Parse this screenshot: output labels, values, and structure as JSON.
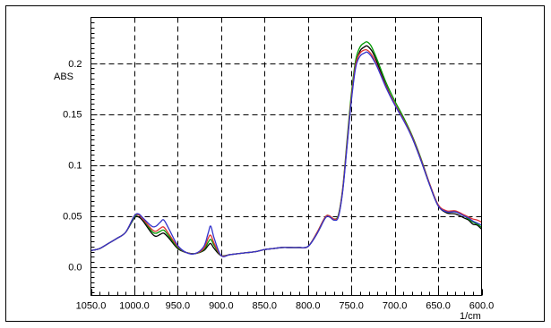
{
  "chart_data": {
    "type": "line",
    "title": "",
    "ylabel": "ABS",
    "xlabel": "1/cm",
    "x_reversed": true,
    "xlim": [
      1050,
      600
    ],
    "ylim": [
      -0.028,
      0.245
    ],
    "grid": true,
    "x_ticks": [
      1050,
      1000,
      950,
      900,
      850,
      800,
      750,
      700,
      650,
      600
    ],
    "x_tick_labels": [
      "1050.0",
      "1000.0",
      "950.0",
      "900.0",
      "850.0",
      "800.0",
      "750.0",
      "700.0",
      "650.0",
      "600.0"
    ],
    "y_ticks": [
      0.0,
      0.05,
      0.1,
      0.15,
      0.2
    ],
    "y_tick_labels": [
      "0.0",
      "0.05",
      "0.1",
      "0.15",
      "0.2"
    ],
    "x": [
      1050,
      1040,
      1030,
      1020,
      1010,
      1000,
      995,
      990,
      980,
      975,
      970,
      966,
      960,
      950,
      940,
      930,
      920,
      915,
      912,
      908,
      900,
      890,
      880,
      870,
      860,
      850,
      840,
      830,
      820,
      810,
      800,
      790,
      780,
      775,
      770,
      765,
      760,
      755,
      750,
      745,
      740,
      735,
      732,
      728,
      725,
      720,
      710,
      700,
      690,
      680,
      670,
      660,
      650,
      640,
      630,
      620,
      615,
      610,
      605,
      600
    ],
    "series": [
      {
        "color": "#000000",
        "values": [
          0.016,
          0.018,
          0.023,
          0.028,
          0.034,
          0.048,
          0.049,
          0.045,
          0.033,
          0.03,
          0.032,
          0.033,
          0.028,
          0.018,
          0.014,
          0.013,
          0.016,
          0.021,
          0.023,
          0.018,
          0.011,
          0.012,
          0.013,
          0.014,
          0.015,
          0.017,
          0.018,
          0.019,
          0.019,
          0.019,
          0.02,
          0.032,
          0.048,
          0.049,
          0.046,
          0.05,
          0.075,
          0.12,
          0.165,
          0.198,
          0.212,
          0.216,
          0.217,
          0.214,
          0.21,
          0.2,
          0.178,
          0.16,
          0.145,
          0.127,
          0.105,
          0.081,
          0.06,
          0.053,
          0.052,
          0.048,
          0.046,
          0.042,
          0.041,
          0.037
        ]
      },
      {
        "color": "#009900",
        "values": [
          0.016,
          0.018,
          0.023,
          0.028,
          0.034,
          0.049,
          0.051,
          0.047,
          0.035,
          0.033,
          0.035,
          0.036,
          0.03,
          0.019,
          0.014,
          0.013,
          0.017,
          0.024,
          0.027,
          0.021,
          0.011,
          0.012,
          0.013,
          0.014,
          0.015,
          0.017,
          0.018,
          0.019,
          0.019,
          0.019,
          0.02,
          0.033,
          0.049,
          0.05,
          0.047,
          0.051,
          0.077,
          0.124,
          0.17,
          0.203,
          0.216,
          0.22,
          0.221,
          0.218,
          0.213,
          0.203,
          0.181,
          0.163,
          0.147,
          0.129,
          0.107,
          0.082,
          0.061,
          0.054,
          0.054,
          0.05,
          0.047,
          0.044,
          0.042,
          0.039
        ]
      },
      {
        "color": "#e03030",
        "values": [
          0.016,
          0.018,
          0.023,
          0.028,
          0.034,
          0.05,
          0.051,
          0.047,
          0.037,
          0.035,
          0.038,
          0.039,
          0.032,
          0.02,
          0.014,
          0.013,
          0.018,
          0.028,
          0.031,
          0.023,
          0.011,
          0.012,
          0.013,
          0.014,
          0.015,
          0.017,
          0.018,
          0.019,
          0.019,
          0.019,
          0.02,
          0.033,
          0.049,
          0.05,
          0.047,
          0.05,
          0.076,
          0.121,
          0.166,
          0.199,
          0.21,
          0.213,
          0.213,
          0.21,
          0.206,
          0.197,
          0.177,
          0.16,
          0.145,
          0.128,
          0.106,
          0.082,
          0.061,
          0.055,
          0.055,
          0.051,
          0.049,
          0.047,
          0.046,
          0.044
        ]
      },
      {
        "color": "#3333cc",
        "values": [
          0.016,
          0.018,
          0.023,
          0.028,
          0.034,
          0.05,
          0.052,
          0.048,
          0.04,
          0.04,
          0.044,
          0.046,
          0.037,
          0.021,
          0.014,
          0.013,
          0.02,
          0.033,
          0.04,
          0.028,
          0.011,
          0.012,
          0.013,
          0.014,
          0.015,
          0.017,
          0.018,
          0.019,
          0.019,
          0.019,
          0.02,
          0.032,
          0.048,
          0.049,
          0.046,
          0.049,
          0.074,
          0.118,
          0.163,
          0.196,
          0.207,
          0.21,
          0.211,
          0.208,
          0.204,
          0.196,
          0.176,
          0.159,
          0.144,
          0.127,
          0.105,
          0.081,
          0.06,
          0.054,
          0.054,
          0.05,
          0.048,
          0.045,
          0.043,
          0.041
        ]
      }
    ]
  }
}
